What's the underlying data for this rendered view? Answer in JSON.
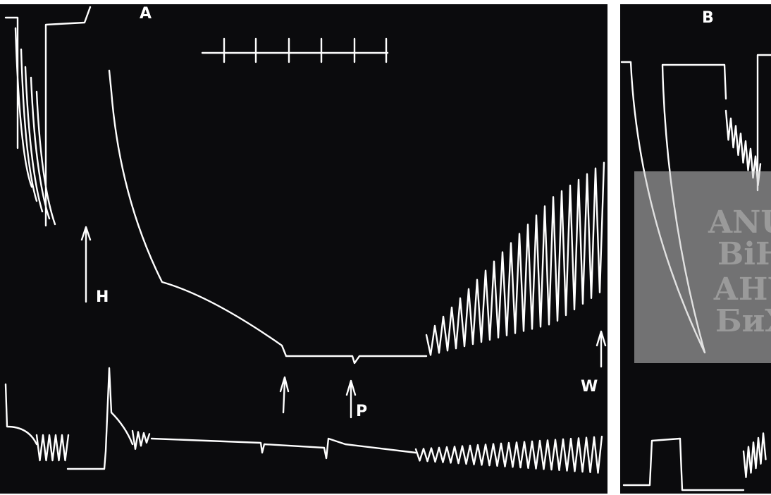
{
  "panels": [
    {
      "label": "A"
    },
    {
      "label": "B"
    }
  ],
  "arrow_labels": [
    "H",
    "P",
    "W"
  ],
  "watermark": [
    "ANU",
    "BiH",
    "АНУ",
    "БиХ"
  ]
}
